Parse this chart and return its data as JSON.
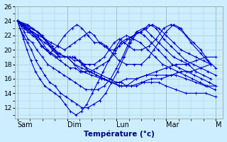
{
  "xlabel": "Température (°c)",
  "background_color": "#cceeff",
  "grid_color": "#aacccc",
  "line_color": "#0000cc",
  "marker": "+",
  "ylim": [
    10.5,
    26
  ],
  "day_labels": [
    "Sam",
    "Dim",
    "Lun",
    "Mar",
    "M"
  ],
  "series": [
    {
      "x": [
        0,
        0.2,
        0.4,
        0.6,
        0.8,
        1.0,
        1.15,
        1.3,
        1.45,
        1.6,
        1.75,
        1.9,
        2.05,
        2.2,
        2.4,
        2.6,
        2.8,
        3.0,
        3.2,
        3.4,
        3.6,
        3.8,
        4.0
      ],
      "y": [
        24,
        23,
        22,
        20,
        19,
        19,
        18,
        17.5,
        17,
        16.5,
        16,
        15.5,
        15,
        15,
        16,
        16.5,
        17,
        17.5,
        18,
        18,
        18.5,
        19,
        19
      ]
    },
    {
      "x": [
        0,
        0.2,
        0.4,
        0.6,
        0.8,
        1.0,
        1.15,
        1.3,
        1.5,
        1.7,
        1.9,
        2.1,
        2.3,
        2.5,
        2.7,
        2.9,
        3.1,
        3.3,
        3.5,
        3.7,
        3.9
      ],
      "y": [
        24,
        23.5,
        22.5,
        21,
        19.5,
        19,
        18,
        17,
        16.5,
        16,
        15.5,
        15,
        15,
        15.5,
        16,
        16,
        16.5,
        17,
        17,
        17.5,
        18
      ]
    },
    {
      "x": [
        0,
        0.15,
        0.3,
        0.5,
        0.7,
        0.85,
        1.0,
        1.15,
        1.3,
        1.45,
        1.6,
        1.75,
        1.9,
        2.05,
        2.2,
        2.4,
        2.6,
        2.8,
        3.0,
        3.2,
        3.4,
        3.6,
        3.8,
        4.0
      ],
      "y": [
        24,
        23.5,
        23,
        22,
        20,
        19,
        19,
        19,
        18,
        17,
        16.5,
        16,
        15.5,
        15.5,
        16,
        16,
        16.5,
        16.5,
        16.5,
        16.5,
        16,
        15.5,
        15,
        15
      ]
    },
    {
      "x": [
        0,
        0.12,
        0.25,
        0.4,
        0.55,
        0.7,
        0.85,
        1.0,
        1.1,
        1.25,
        1.4,
        1.55,
        1.7,
        1.85,
        2.0,
        2.1,
        2.2,
        2.3,
        2.4,
        2.55,
        2.7,
        2.85,
        3.0,
        3.2,
        3.4,
        3.6,
        3.8,
        4.0
      ],
      "y": [
        24,
        23.5,
        23,
        22.5,
        21.5,
        20.5,
        19,
        19,
        19,
        18.5,
        17.5,
        17,
        16.5,
        16,
        15.5,
        15.5,
        15,
        15,
        15,
        15.5,
        15.5,
        15.5,
        15,
        14.5,
        14,
        14,
        14,
        13.5
      ]
    },
    {
      "x": [
        0,
        0.1,
        0.2,
        0.35,
        0.5,
        0.65,
        0.8,
        0.95,
        1.1,
        1.2,
        1.3,
        1.42,
        1.55,
        1.68,
        1.8,
        1.92,
        2.05,
        2.2,
        2.35,
        2.5,
        2.65,
        2.75,
        2.85,
        3.0,
        3.15,
        3.3,
        3.5,
        3.7,
        3.9
      ],
      "y": [
        24,
        23.5,
        23,
        22,
        20.5,
        19.5,
        20.5,
        22,
        23,
        23.5,
        23,
        22,
        21,
        21,
        20.5,
        19.5,
        18.5,
        18,
        18,
        18,
        19,
        20,
        21,
        22.5,
        23.5,
        23,
        21,
        19.5,
        18
      ]
    },
    {
      "x": [
        0,
        0.08,
        0.18,
        0.3,
        0.42,
        0.55,
        0.68,
        0.82,
        0.95,
        1.05,
        1.15,
        1.25,
        1.35,
        1.45,
        1.55,
        1.65,
        1.75,
        1.85,
        1.95,
        2.05,
        2.15,
        2.25,
        2.35,
        2.48,
        2.6,
        2.72,
        2.85,
        3.0,
        3.15,
        3.3,
        3.45,
        3.6,
        3.75,
        3.9
      ],
      "y": [
        24,
        23.5,
        23,
        22.5,
        22,
        21.5,
        21,
        20.5,
        20,
        20.5,
        21,
        21.5,
        22,
        22.5,
        22,
        21,
        20.5,
        20,
        20,
        20.5,
        21,
        21.5,
        22,
        22.5,
        23,
        23.5,
        23,
        22,
        21,
        20,
        19.5,
        19,
        18.5,
        18
      ]
    },
    {
      "x": [
        0,
        0.07,
        0.15,
        0.25,
        0.35,
        0.45,
        0.55,
        0.65,
        0.75,
        0.85,
        0.95,
        1.05,
        1.15,
        1.25,
        1.35,
        1.45,
        1.55,
        1.65,
        1.75,
        1.85,
        1.95,
        2.05,
        2.15,
        2.25,
        2.35,
        2.5,
        2.65,
        2.8,
        2.95,
        3.1,
        3.25,
        3.4,
        3.55,
        3.7,
        3.85,
        4.0
      ],
      "y": [
        24,
        23.5,
        23,
        22.5,
        22,
        21.5,
        21,
        20.5,
        20,
        19.5,
        19,
        19,
        18.5,
        18.5,
        18,
        18,
        18,
        18.5,
        19,
        20,
        21,
        21.5,
        21,
        20.5,
        20,
        20,
        20.5,
        21.5,
        23,
        23.5,
        23,
        22,
        21,
        20,
        18.5,
        17.5
      ]
    },
    {
      "x": [
        0,
        0.06,
        0.13,
        0.21,
        0.3,
        0.39,
        0.48,
        0.57,
        0.66,
        0.76,
        0.86,
        0.96,
        1.06,
        1.16,
        1.26,
        1.36,
        1.48,
        1.6,
        1.72,
        1.84,
        1.96,
        2.08,
        2.2,
        2.35,
        2.5,
        2.65,
        2.8,
        2.95,
        3.1,
        3.25,
        3.4,
        3.55,
        3.7,
        3.85,
        4.0
      ],
      "y": [
        24,
        23.5,
        23,
        22.5,
        22,
        21.5,
        20.5,
        20,
        19.5,
        19,
        18.5,
        18,
        17.5,
        17.5,
        17,
        17,
        17,
        17.5,
        18,
        18.5,
        19.5,
        21,
        21.5,
        22,
        22.5,
        23.5,
        23,
        21.5,
        20.5,
        19.5,
        18.5,
        18,
        17.5,
        17,
        16.5
      ]
    },
    {
      "x": [
        0,
        0.06,
        0.13,
        0.21,
        0.3,
        0.39,
        0.5,
        0.61,
        0.72,
        0.83,
        0.94,
        1.05,
        1.16,
        1.27,
        1.38,
        1.5,
        1.62,
        1.75,
        1.88,
        2.0,
        2.12,
        2.25,
        2.4,
        2.55,
        2.7,
        2.85,
        3.0,
        3.15,
        3.3,
        3.45,
        3.6,
        3.75,
        3.9
      ],
      "y": [
        24,
        23.5,
        22.5,
        21.5,
        21,
        20,
        19,
        18,
        17.5,
        17,
        16.5,
        16,
        15.5,
        15,
        14.5,
        14.5,
        14.5,
        15,
        16,
        17.5,
        19,
        21,
        22.5,
        23,
        22,
        21,
        20,
        19,
        18.5,
        18,
        17,
        16.5,
        16
      ]
    },
    {
      "x": [
        0,
        0.05,
        0.12,
        0.2,
        0.28,
        0.37,
        0.46,
        0.55,
        0.65,
        0.76,
        0.87,
        0.98,
        1.09,
        1.2,
        1.3,
        1.42,
        1.54,
        1.66,
        1.78,
        1.9,
        2.02,
        2.15,
        2.28,
        2.42,
        2.56,
        2.7,
        2.84,
        2.98,
        3.12,
        3.27,
        3.42,
        3.57,
        3.72,
        3.87,
        4.0
      ],
      "y": [
        24,
        23,
        22,
        21,
        20,
        18.5,
        17.5,
        16.5,
        15.5,
        15,
        14,
        13.5,
        13,
        12.5,
        12,
        12,
        12.5,
        13,
        14,
        15.5,
        17,
        19,
        21,
        22.5,
        22,
        21,
        20,
        19,
        18,
        17.5,
        17,
        16.5,
        16,
        15.5,
        15
      ]
    },
    {
      "x": [
        0,
        0.05,
        0.12,
        0.19,
        0.27,
        0.36,
        0.45,
        0.55,
        0.65,
        0.75,
        0.85,
        0.96,
        1.07,
        1.18,
        1.29,
        1.4,
        1.51,
        1.62,
        1.73,
        1.84,
        1.96,
        2.08,
        2.2,
        2.34,
        2.48,
        2.63,
        2.78,
        2.93,
        3.08,
        3.23,
        3.38,
        3.53,
        3.68,
        3.83,
        3.98
      ],
      "y": [
        24,
        23,
        21.5,
        20,
        18.5,
        17,
        16,
        15,
        14.5,
        14,
        13.5,
        12.5,
        11.5,
        11,
        11.5,
        12.5,
        14,
        15.5,
        17,
        18.5,
        20,
        21.5,
        22,
        21.5,
        21,
        20,
        19,
        18,
        17.5,
        17,
        16.5,
        16,
        15.5,
        15,
        14.5
      ]
    }
  ]
}
